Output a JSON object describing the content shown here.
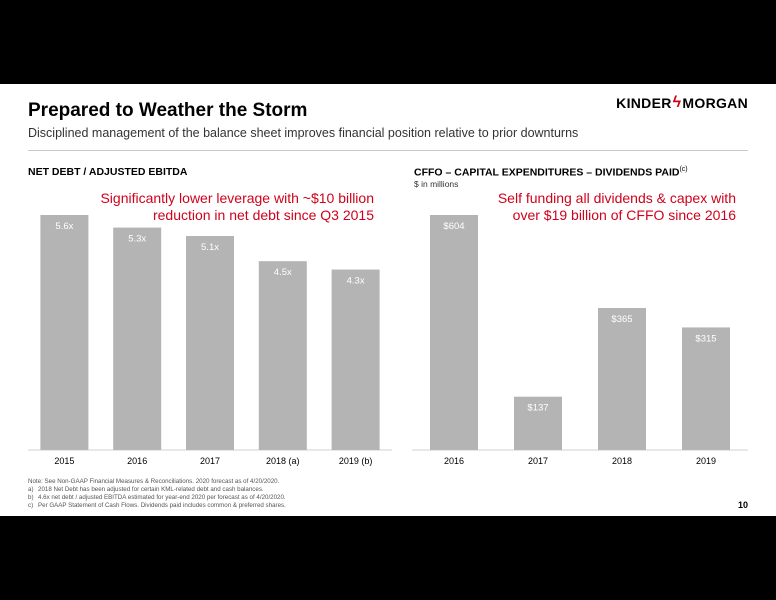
{
  "header": {
    "title": "Prepared to Weather the Storm",
    "subtitle": "Disciplined management of the balance sheet improves financial position relative to prior downturns",
    "logo_left": "KINDER",
    "logo_right": "MORGAN"
  },
  "left_section": {
    "title": "NET DEBT / ADJUSTED EBITDA",
    "callout_line1": "Significantly lower leverage with ~$10 billion",
    "callout_line2": "reduction in net debt since Q3 2015"
  },
  "right_section": {
    "title": "CFFO – CAPITAL EXPENDITURES – DIVIDENDS PAID",
    "title_sup": "(c)",
    "units": "$ in millions",
    "callout_line1": "Self funding all dividends & capex with",
    "callout_line2": "over $19 billion of CFFO since 2016"
  },
  "chart_data": [
    {
      "type": "bar",
      "categories": [
        "2015",
        "2016",
        "2017",
        "2018 (a)",
        "2019 (b)"
      ],
      "values": [
        5.6,
        5.3,
        5.1,
        4.5,
        4.3
      ],
      "labels": [
        "5.6x",
        "5.3x",
        "5.1x",
        "4.5x",
        "4.3x"
      ],
      "ylim": [
        0,
        5.6
      ],
      "color": "#b4b4b4"
    },
    {
      "type": "bar",
      "categories": [
        "2016",
        "2017",
        "2018",
        "2019"
      ],
      "values": [
        604,
        137,
        365,
        315
      ],
      "labels": [
        "$604",
        "$137",
        "$365",
        "$315"
      ],
      "ylim": [
        0,
        604
      ],
      "color": "#b4b4b4"
    }
  ],
  "footnotes": {
    "note": "Note:  See Non-GAAP Financial Measures & Reconciliations. 2020 forecast as of 4/20/2020.",
    "items": [
      {
        "key": "a)",
        "text": "2018 Net Debt has been adjusted for certain KML-related debt  and cash balances."
      },
      {
        "key": "b)",
        "text": "4.6x net debt / adjusted EBITDA estimated for year-end 2020 per forecast as of 4/20/2020."
      },
      {
        "key": "c)",
        "text": "Per GAAP Statement of Cash Flows. Dividends paid includes common & preferred shares."
      }
    ]
  },
  "page_number": "10"
}
